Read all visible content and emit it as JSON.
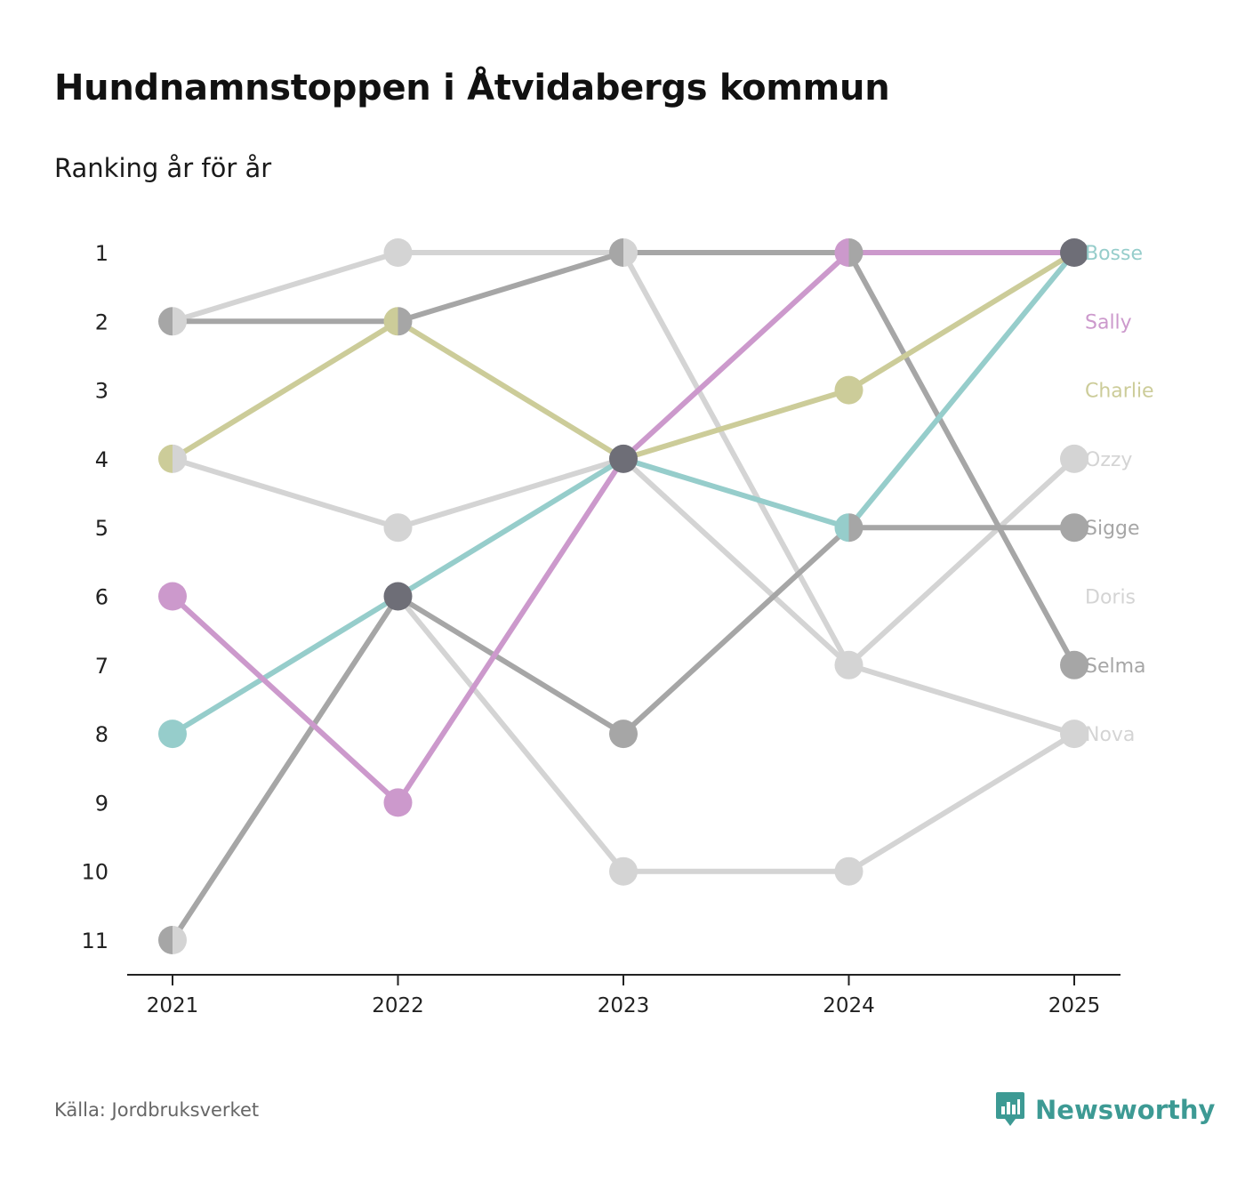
{
  "page": {
    "title": "Hundnamnstoppen i Åtvidabergs kommun",
    "subtitle": "Ranking år för år",
    "source": "Källa: Jordbruksverket",
    "brand": "Newsworthy"
  },
  "brand_icon": "newsworthy-chat-bars-icon",
  "colors": {
    "brand": "#3d9a94",
    "axis": "#222222",
    "tick_label": "#222222"
  },
  "chart_data": {
    "type": "line",
    "subtype": "bump",
    "title": "Hundnamnstoppen i Åtvidabergs kommun",
    "subtitle": "Ranking år för år",
    "x": [
      "2021",
      "2022",
      "2023",
      "2024",
      "2025"
    ],
    "y_ticks": [
      "1",
      "2",
      "3",
      "4",
      "5",
      "6",
      "7",
      "8",
      "9",
      "10",
      "11"
    ],
    "ylim": [
      1,
      11
    ],
    "y_inverted": true,
    "series": [
      {
        "name": "Nova",
        "color": "#d4d4d4",
        "ranks": [
          2,
          1,
          1,
          7,
          8
        ]
      },
      {
        "name": "Doris",
        "color": "#d4d4d4",
        "ranks": [
          11,
          6,
          10,
          10,
          8
        ]
      },
      {
        "name": "Ozzy",
        "color": "#d4d4d4",
        "ranks": [
          4,
          5,
          4,
          7,
          4
        ]
      },
      {
        "name": "Sigge",
        "color": "#a6a6a6",
        "ranks": [
          11,
          6,
          8,
          5,
          5
        ]
      },
      {
        "name": "Selma",
        "color": "#a6a6a6",
        "ranks": [
          2,
          2,
          1,
          1,
          7
        ]
      },
      {
        "name": "Bosse",
        "color": "#96cdcb",
        "ranks": [
          8,
          6,
          4,
          5,
          1
        ]
      },
      {
        "name": "Sally",
        "color": "#cc99cc",
        "ranks": [
          6,
          9,
          4,
          1,
          1
        ]
      },
      {
        "name": "Charlie",
        "color": "#cccc99",
        "ranks": [
          4,
          2,
          4,
          3,
          1
        ]
      }
    ],
    "shared_points": [
      {
        "year": "2022",
        "rank": "6",
        "color": "#6e6e77"
      },
      {
        "year": "2023",
        "rank": "4",
        "color": "#6e6e77"
      },
      {
        "year": "2025",
        "rank": "1",
        "color": "#6e6e77"
      }
    ],
    "end_labels": [
      {
        "name": "Bosse",
        "rank": 1,
        "color": "#96cdcb"
      },
      {
        "name": "Sally",
        "rank": 2,
        "color": "#cc99cc"
      },
      {
        "name": "Charlie",
        "rank": 3,
        "color": "#cccc99"
      },
      {
        "name": "Ozzy",
        "rank": 4,
        "color": "#d4d4d4"
      },
      {
        "name": "Sigge",
        "rank": 5,
        "color": "#a6a6a6"
      },
      {
        "name": "Doris",
        "rank": 6,
        "color": "#d4d4d4"
      },
      {
        "name": "Selma",
        "rank": 7,
        "color": "#a6a6a6"
      },
      {
        "name": "Nova",
        "rank": 8,
        "color": "#d4d4d4"
      }
    ]
  }
}
